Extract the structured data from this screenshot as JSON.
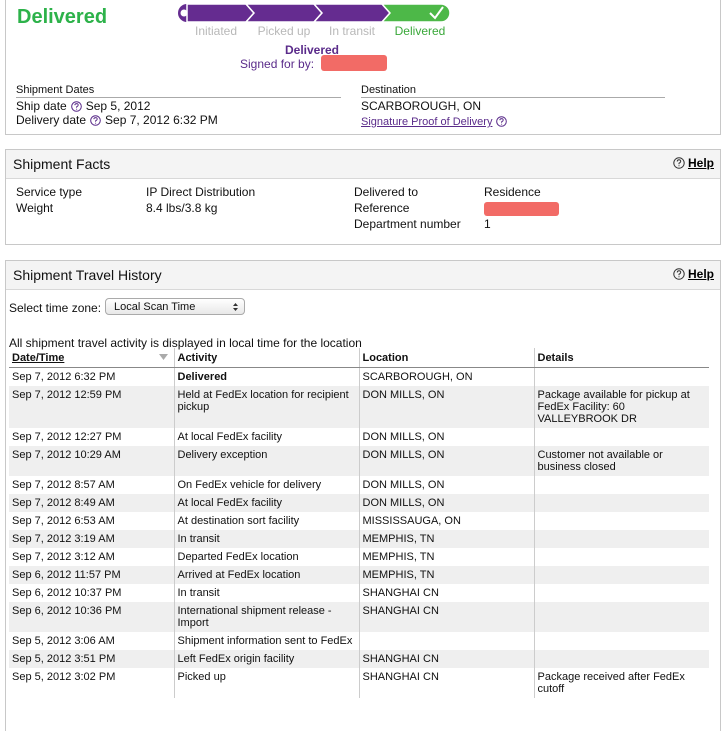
{
  "header": {
    "status": "Delivered",
    "progress": [
      "Initiated",
      "Picked up",
      "In transit",
      "Delivered"
    ],
    "delivered_label": "Delivered",
    "signed_for_by": "Signed for by:"
  },
  "shipment_dates": {
    "title": "Shipment Dates",
    "ship_date_label": "Ship date",
    "ship_date": "Sep 5, 2012",
    "delivery_date_label": "Delivery date",
    "delivery_date": "Sep 7, 2012 6:32 PM"
  },
  "destination": {
    "title": "Destination",
    "location": "SCARBOROUGH, ON",
    "proof_link": "Signature Proof of Delivery"
  },
  "shipment_facts": {
    "title": "Shipment Facts",
    "help": "Help",
    "left": [
      {
        "label": "Service type",
        "value": "IP Direct Distribution"
      },
      {
        "label": "Weight",
        "value": "8.4 lbs/3.8 kg"
      }
    ],
    "right": [
      {
        "label": "Delivered to",
        "value": "Residence"
      },
      {
        "label": "Reference"
      },
      {
        "label": "Department number",
        "value": "1"
      }
    ]
  },
  "travel_history": {
    "title": "Shipment Travel History",
    "help": "Help",
    "time_zone_label": "Select time zone:",
    "time_zone_value": "Local Scan Time",
    "note": "All shipment travel activity is displayed in local time for the location",
    "columns": [
      "Date/Time",
      "Activity",
      "Location",
      "Details"
    ],
    "rows": [
      {
        "date": "Sep 7, 2012 6:32 PM",
        "activity": "Delivered",
        "location": "SCARBOROUGH, ON"
      },
      {
        "date": "Sep 7, 2012 12:59 PM",
        "activity": "Held at FedEx location for recipient pickup",
        "location": "DON MILLS, ON",
        "details": "Package available for pickup at FedEx Facility: 60 VALLEYBROOK DR"
      },
      {
        "date": "Sep 7, 2012 12:27 PM",
        "activity": "At local FedEx facility",
        "location": "DON MILLS, ON"
      },
      {
        "date": "Sep 7, 2012 10:29 AM",
        "activity": "Delivery exception",
        "location": "DON MILLS, ON",
        "details": "Customer not available or business closed"
      },
      {
        "date": "Sep 7, 2012 8:57 AM",
        "activity": "On FedEx vehicle for delivery",
        "location": "DON MILLS, ON"
      },
      {
        "date": "Sep 7, 2012 8:49 AM",
        "activity": "At local FedEx facility",
        "location": "DON MILLS, ON"
      },
      {
        "date": "Sep 7, 2012 6:53 AM",
        "activity": "At destination sort facility",
        "location": "MISSISSAUGA, ON"
      },
      {
        "date": "Sep 7, 2012 3:19 AM",
        "activity": "In transit",
        "location": "MEMPHIS, TN"
      },
      {
        "date": "Sep 7, 2012 3:12 AM",
        "activity": "Departed FedEx location",
        "location": "MEMPHIS, TN"
      },
      {
        "date": "Sep 6, 2012 11:57 PM",
        "activity": "Arrived at FedEx location",
        "location": "MEMPHIS, TN"
      },
      {
        "date": "Sep 6, 2012 10:37 PM",
        "activity": "In transit",
        "location": "SHANGHAI CN"
      },
      {
        "date": "Sep 6, 2012 10:36 PM",
        "activity": "International shipment release - Import",
        "location": "SHANGHAI CN"
      },
      {
        "date": "Sep 5, 2012 3:06 AM",
        "activity": "Shipment information sent to FedEx"
      },
      {
        "date": "Sep 5, 2012 3:51 PM",
        "activity": "Left FedEx origin facility",
        "location": "SHANGHAI CN"
      },
      {
        "date": "Sep 5, 2012 3:02 PM",
        "activity": "Picked up",
        "location": "SHANGHAI CN",
        "details": "Package received after FedEx cutoff"
      }
    ]
  }
}
